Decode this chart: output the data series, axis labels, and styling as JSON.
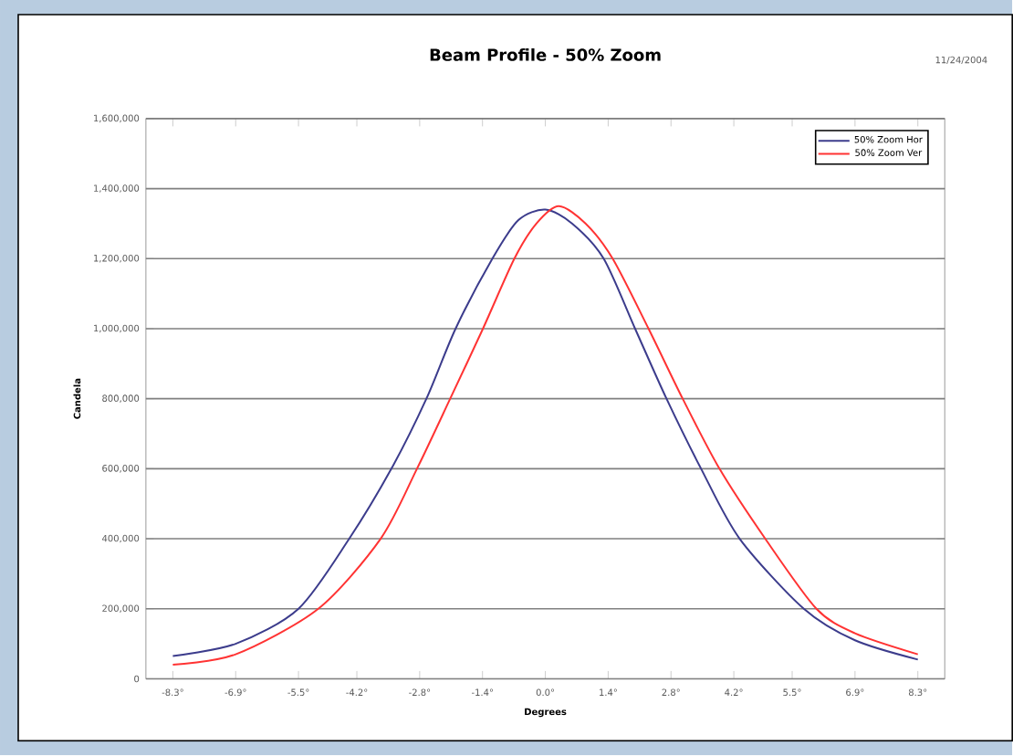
{
  "chart_data": {
    "type": "line",
    "title": "Beam Profile - 50% Zoom",
    "xlabel": "Degrees",
    "ylabel": "Candela",
    "annotations": [
      "11/24/2004"
    ],
    "xlim": [
      -8.9,
      8.9
    ],
    "ylim": [
      0,
      1600000
    ],
    "xticks": [
      {
        "value": -8.3,
        "label": "-8.3°"
      },
      {
        "value": -6.9,
        "label": "-6.9°"
      },
      {
        "value": -5.5,
        "label": "-5.5°"
      },
      {
        "value": -4.2,
        "label": "-4.2°"
      },
      {
        "value": -2.8,
        "label": "-2.8°"
      },
      {
        "value": -1.4,
        "label": "-1.4°"
      },
      {
        "value": 0.0,
        "label": "0.0°"
      },
      {
        "value": 1.4,
        "label": "1.4°"
      },
      {
        "value": 2.8,
        "label": "2.8°"
      },
      {
        "value": 4.2,
        "label": "4.2°"
      },
      {
        "value": 5.5,
        "label": "5.5°"
      },
      {
        "value": 6.9,
        "label": "6.9°"
      },
      {
        "value": 8.3,
        "label": "8.3°"
      }
    ],
    "yticks": [
      {
        "value": 0,
        "label": "0"
      },
      {
        "value": 200000,
        "label": "200,000"
      },
      {
        "value": 400000,
        "label": "400,000"
      },
      {
        "value": 600000,
        "label": "600,000"
      },
      {
        "value": 800000,
        "label": "800,000"
      },
      {
        "value": 1000000,
        "label": "1,000,000"
      },
      {
        "value": 1200000,
        "label": "1,200,000"
      },
      {
        "value": 1400000,
        "label": "1,400,000"
      },
      {
        "value": 1600000,
        "label": "1,600,000"
      }
    ],
    "grid": "y",
    "legend": "top right",
    "marker": "none",
    "line_style": "solid",
    "series": [
      {
        "name": "50% Zoom Hor",
        "color": "#3c3c8c",
        "x": [
          -8.3,
          -6.9,
          -5.5,
          -4.37,
          -3.43,
          -2.65,
          -2.0,
          -1.18,
          -0.6,
          0.0,
          0.6,
          1.3,
          2.0,
          2.7,
          3.47,
          4.33,
          5.76,
          6.9,
          8.3
        ],
        "values": [
          65000,
          100000,
          200000,
          400000,
          600000,
          800000,
          1000000,
          1200000,
          1310000,
          1340000,
          1300000,
          1200000,
          1000000,
          800000,
          600000,
          400000,
          200000,
          110000,
          55000
        ]
      },
      {
        "name": "50% Zoom Ver",
        "color": "#ff3333",
        "x": [
          -8.3,
          -6.9,
          -5.06,
          -3.67,
          -2.86,
          -2.12,
          -1.39,
          -0.69,
          -0.2,
          0.3,
          0.9,
          1.5,
          2.3,
          3.06,
          3.88,
          4.9,
          6.04,
          6.9,
          8.3
        ],
        "values": [
          40000,
          70000,
          200000,
          400000,
          600000,
          800000,
          1000000,
          1200000,
          1300000,
          1350000,
          1300000,
          1200000,
          1000000,
          800000,
          600000,
          400000,
          200000,
          130000,
          70000
        ]
      }
    ]
  }
}
